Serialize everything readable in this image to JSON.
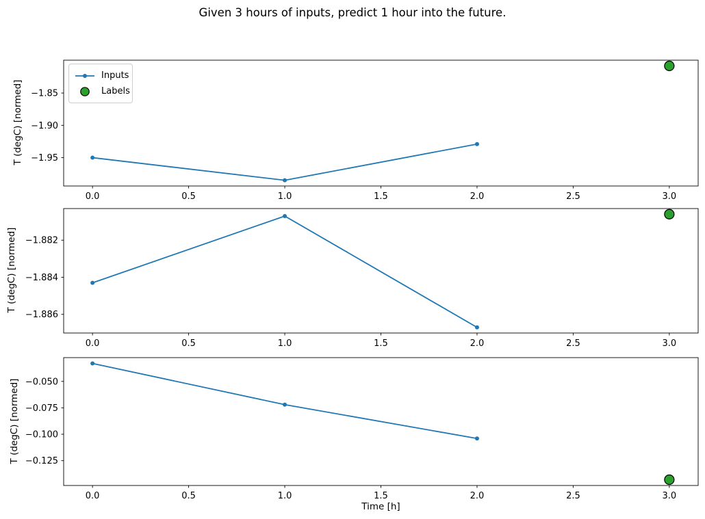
{
  "figure": {
    "title": "Given 3 hours of inputs, predict 1 hour into the future.",
    "xlabel": "Time [h]",
    "ylabel": "T (degC) [normed]",
    "legend": {
      "inputs": "Inputs",
      "labels": "Labels"
    },
    "colors": {
      "inputs_line": "#1f77b4",
      "labels_fill": "#2ca02c",
      "labels_edge": "#000000",
      "axes": "#000000",
      "legend_border": "#cccccc"
    }
  },
  "chart_data": [
    {
      "type": "line",
      "panel": "subplot-1",
      "ylabel": "T (degC) [normed]",
      "xlim": [
        -0.15,
        3.15
      ],
      "xticks": {
        "values": [
          0,
          0.5,
          1,
          1.5,
          2,
          2.5,
          3
        ],
        "labels": [
          "0.0",
          "0.5",
          "1.0",
          "1.5",
          "2.0",
          "2.5",
          "3.0"
        ]
      },
      "yticks": {
        "values": [
          -1.85,
          -1.9,
          -1.95
        ],
        "labels": [
          "−1.85",
          "−1.90",
          "−1.95"
        ]
      },
      "series": [
        {
          "name": "Inputs",
          "type": "line",
          "x": [
            0,
            1,
            2
          ],
          "values": [
            -1.95,
            -1.985,
            -1.929
          ]
        },
        {
          "name": "Labels",
          "type": "scatter",
          "x": [
            3
          ],
          "values": [
            -1.808
          ]
        }
      ],
      "legend_position": "upper left",
      "grid": false
    },
    {
      "type": "line",
      "panel": "subplot-2",
      "ylabel": "T (degC) [normed]",
      "xlim": [
        -0.15,
        3.15
      ],
      "xticks": {
        "values": [
          0,
          0.5,
          1,
          1.5,
          2,
          2.5,
          3
        ],
        "labels": [
          "0.0",
          "0.5",
          "1.0",
          "1.5",
          "2.0",
          "2.5",
          "3.0"
        ]
      },
      "yticks": {
        "values": [
          -1.882,
          -1.884,
          -1.886
        ],
        "labels": [
          "−1.882",
          "−1.884",
          "−1.886"
        ]
      },
      "series": [
        {
          "name": "Inputs",
          "type": "line",
          "x": [
            0,
            1,
            2
          ],
          "values": [
            -1.8843,
            -1.8807,
            -1.8867
          ]
        },
        {
          "name": "Labels",
          "type": "scatter",
          "x": [
            3
          ],
          "values": [
            -1.8806
          ]
        }
      ],
      "legend_position": "none",
      "grid": false
    },
    {
      "type": "line",
      "panel": "subplot-3",
      "ylabel": "T (degC) [normed]",
      "xlim": [
        -0.15,
        3.15
      ],
      "xticks": {
        "values": [
          0,
          0.5,
          1,
          1.5,
          2,
          2.5,
          3
        ],
        "labels": [
          "0.0",
          "0.5",
          "1.0",
          "1.5",
          "2.0",
          "2.5",
          "3.0"
        ]
      },
      "yticks": {
        "values": [
          -0.05,
          -0.075,
          -0.1,
          -0.125
        ],
        "labels": [
          "−0.050",
          "−0.075",
          "−0.100",
          "−0.125"
        ]
      },
      "series": [
        {
          "name": "Inputs",
          "type": "line",
          "x": [
            0,
            1,
            2
          ],
          "values": [
            -0.033,
            -0.072,
            -0.104
          ]
        },
        {
          "name": "Labels",
          "type": "scatter",
          "x": [
            3
          ],
          "values": [
            -0.143
          ]
        }
      ],
      "legend_position": "none",
      "grid": false
    }
  ]
}
